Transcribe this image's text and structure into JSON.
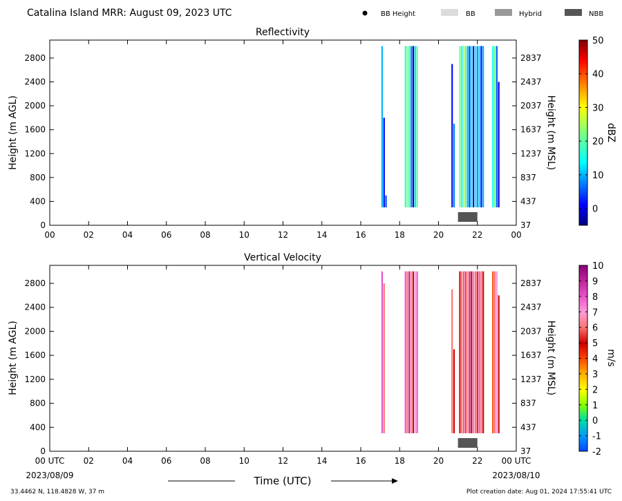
{
  "header": {
    "title": "Catalina Island MRR:  August 09, 2023 UTC"
  },
  "legend": [
    {
      "label": "BB Height",
      "marker": "dot",
      "color": "#000000"
    },
    {
      "label": "BB",
      "marker": "box",
      "color": "#dcdcdc"
    },
    {
      "label": "Hybrid",
      "marker": "box",
      "color": "#999999"
    },
    {
      "label": "NBB",
      "marker": "box",
      "color": "#555555"
    }
  ],
  "footer": {
    "location": "33.4462 N, 118.4828 W, 37 m",
    "creation": "Plot creation date: Aug 01, 2024 17:55:41 UTC",
    "x_title": "Time (UTC)",
    "start_date": "2023/08/09",
    "end_date": "2023/08/10"
  },
  "chart_data": [
    {
      "type": "heatmap",
      "title": "Reflectivity",
      "xlabel": "",
      "ylabel": "Height (m AGL)",
      "ylabel_right": "Height (m MSL)",
      "xlim": [
        0,
        24
      ],
      "ylim": [
        0,
        3100
      ],
      "x_ticks": [
        "00",
        "02",
        "04",
        "06",
        "08",
        "10",
        "12",
        "14",
        "16",
        "18",
        "20",
        "22",
        "00"
      ],
      "y_ticks": [
        0,
        400,
        800,
        1200,
        1600,
        2000,
        2400,
        2800
      ],
      "y_ticks_right": [
        37,
        437,
        837,
        1237,
        1637,
        2037,
        2437,
        2837
      ],
      "colorbar": {
        "label": "dBZ",
        "min": -5,
        "max": 50,
        "ticks": [
          0,
          10,
          20,
          30,
          40,
          50
        ],
        "colormap": "jet"
      },
      "bright_band": [
        {
          "type": "NBB",
          "start": 21.0,
          "end": 22.0
        }
      ],
      "columns": [
        {
          "t": 17.1,
          "bottom": 300,
          "top": 3000,
          "value": 10
        },
        {
          "t": 17.2,
          "bottom": 300,
          "top": 1800,
          "value": 0
        },
        {
          "t": 17.3,
          "bottom": 300,
          "top": 500,
          "value": 5
        },
        {
          "t": 18.3,
          "bottom": 300,
          "top": 3000,
          "value": 16
        },
        {
          "t": 18.4,
          "bottom": 300,
          "top": 3000,
          "value": 24
        },
        {
          "t": 18.5,
          "bottom": 300,
          "top": 3000,
          "value": 18
        },
        {
          "t": 18.6,
          "bottom": 300,
          "top": 3000,
          "value": 8
        },
        {
          "t": 18.7,
          "bottom": 300,
          "top": 3000,
          "value": -2
        },
        {
          "t": 18.8,
          "bottom": 300,
          "top": 3000,
          "value": 12
        },
        {
          "t": 18.9,
          "bottom": 300,
          "top": 3000,
          "value": 20
        },
        {
          "t": 20.7,
          "bottom": 300,
          "top": 2700,
          "value": 2
        },
        {
          "t": 20.8,
          "bottom": 300,
          "top": 1700,
          "value": 8
        },
        {
          "t": 21.1,
          "bottom": 300,
          "top": 3000,
          "value": 22
        },
        {
          "t": 21.2,
          "bottom": 300,
          "top": 3000,
          "value": 14
        },
        {
          "t": 21.3,
          "bottom": 300,
          "top": 3000,
          "value": 26
        },
        {
          "t": 21.4,
          "bottom": 300,
          "top": 3000,
          "value": 20
        },
        {
          "t": 21.5,
          "bottom": 300,
          "top": 3000,
          "value": 10
        },
        {
          "t": 21.6,
          "bottom": 300,
          "top": 3000,
          "value": 4
        },
        {
          "t": 21.7,
          "bottom": 300,
          "top": 3000,
          "value": 14
        },
        {
          "t": 21.8,
          "bottom": 300,
          "top": 3000,
          "value": 0
        },
        {
          "t": 21.9,
          "bottom": 300,
          "top": 3000,
          "value": 16
        },
        {
          "t": 22.0,
          "bottom": 300,
          "top": 3000,
          "value": 8
        },
        {
          "t": 22.1,
          "bottom": 300,
          "top": 3000,
          "value": 12
        },
        {
          "t": 22.2,
          "bottom": 300,
          "top": 3000,
          "value": 2
        },
        {
          "t": 22.3,
          "bottom": 300,
          "top": 3000,
          "value": 10
        },
        {
          "t": 22.8,
          "bottom": 300,
          "top": 3000,
          "value": 14
        },
        {
          "t": 22.9,
          "bottom": 300,
          "top": 3000,
          "value": 22
        },
        {
          "t": 23.0,
          "bottom": 300,
          "top": 3000,
          "value": 6
        },
        {
          "t": 23.1,
          "bottom": 300,
          "top": 2400,
          "value": 0
        }
      ]
    },
    {
      "type": "heatmap",
      "title": "Vertical Velocity",
      "xlabel": "Time (UTC)",
      "ylabel": "Height (m AGL)",
      "ylabel_right": "Height (m MSL)",
      "xlim": [
        0,
        24
      ],
      "ylim": [
        0,
        3100
      ],
      "x_ticks": [
        "00 UTC",
        "02",
        "04",
        "06",
        "08",
        "10",
        "12",
        "14",
        "16",
        "18",
        "20",
        "22",
        "00 UTC"
      ],
      "y_ticks": [
        0,
        400,
        800,
        1200,
        1600,
        2000,
        2400,
        2800
      ],
      "y_ticks_right": [
        37,
        437,
        837,
        1237,
        1637,
        2037,
        2437,
        2837
      ],
      "colorbar": {
        "label": "m/s",
        "min": -2,
        "max": 10,
        "ticks": [
          -2,
          -1,
          0,
          1,
          2,
          3,
          4,
          5,
          6,
          7,
          8,
          9,
          10
        ],
        "colormap": "velocity"
      },
      "bright_band": [
        {
          "type": "NBB",
          "start": 21.0,
          "end": 22.0
        }
      ],
      "columns": [
        {
          "t": 17.1,
          "bottom": 300,
          "top": 3000,
          "value": 8
        },
        {
          "t": 17.2,
          "bottom": 300,
          "top": 2800,
          "value": 6
        },
        {
          "t": 18.3,
          "bottom": 300,
          "top": 3000,
          "value": 8
        },
        {
          "t": 18.4,
          "bottom": 300,
          "top": 3000,
          "value": 6
        },
        {
          "t": 18.5,
          "bottom": 300,
          "top": 3000,
          "value": 9
        },
        {
          "t": 18.6,
          "bottom": 300,
          "top": 3000,
          "value": 6.5
        },
        {
          "t": 18.7,
          "bottom": 300,
          "top": 3000,
          "value": 5
        },
        {
          "t": 18.8,
          "bottom": 300,
          "top": 3000,
          "value": 7
        },
        {
          "t": 18.9,
          "bottom": 300,
          "top": 3000,
          "value": 8
        },
        {
          "t": 20.7,
          "bottom": 300,
          "top": 2700,
          "value": 6
        },
        {
          "t": 20.8,
          "bottom": 300,
          "top": 1700,
          "value": 5
        },
        {
          "t": 21.1,
          "bottom": 300,
          "top": 3000,
          "value": 5
        },
        {
          "t": 21.2,
          "bottom": 300,
          "top": 3000,
          "value": 6
        },
        {
          "t": 21.3,
          "bottom": 300,
          "top": 3000,
          "value": 8
        },
        {
          "t": 21.4,
          "bottom": 300,
          "top": 3000,
          "value": 4
        },
        {
          "t": 21.5,
          "bottom": 300,
          "top": 3000,
          "value": 6.5
        },
        {
          "t": 21.6,
          "bottom": 300,
          "top": 3000,
          "value": 9
        },
        {
          "t": 21.7,
          "bottom": 300,
          "top": 3000,
          "value": 5
        },
        {
          "t": 21.8,
          "bottom": 300,
          "top": 3000,
          "value": 7.5
        },
        {
          "t": 21.9,
          "bottom": 300,
          "top": 3000,
          "value": 6
        },
        {
          "t": 22.0,
          "bottom": 300,
          "top": 3000,
          "value": 4.5
        },
        {
          "t": 22.1,
          "bottom": 300,
          "top": 3000,
          "value": 8
        },
        {
          "t": 22.2,
          "bottom": 300,
          "top": 3000,
          "value": 6
        },
        {
          "t": 22.3,
          "bottom": 300,
          "top": 3000,
          "value": 5
        },
        {
          "t": 22.8,
          "bottom": 300,
          "top": 3000,
          "value": 4
        },
        {
          "t": 22.9,
          "bottom": 300,
          "top": 3000,
          "value": 6
        },
        {
          "t": 23.0,
          "bottom": 300,
          "top": 3000,
          "value": 7
        },
        {
          "t": 23.1,
          "bottom": 300,
          "top": 2600,
          "value": 5
        }
      ]
    }
  ]
}
